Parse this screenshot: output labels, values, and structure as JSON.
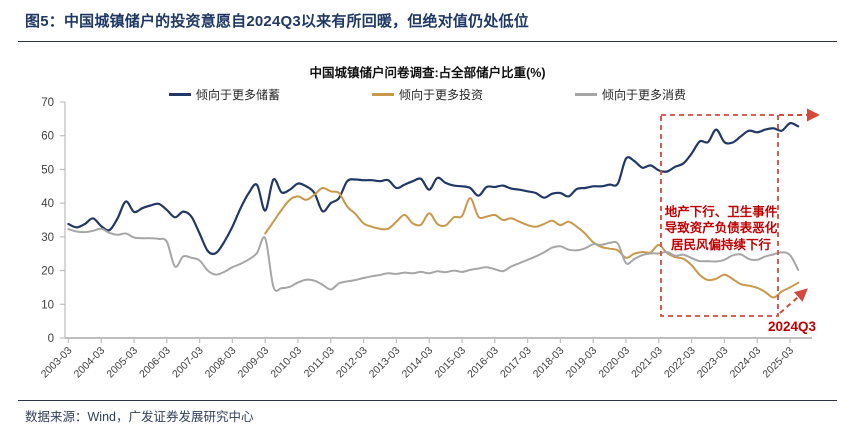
{
  "header": {
    "figure_title": "图5：中国城镇储户的投资意愿自2024Q3以来有所回暖，但绝对值仍处低位"
  },
  "footer": {
    "source": "数据来源：Wind，广发证券发展研究中心"
  },
  "chart_data": {
    "type": "line",
    "title": "中国城镇储户问卷调查:占全部储户比重(%)",
    "x_frequency": "quarterly",
    "x_range": [
      "2003-03",
      "2025-06"
    ],
    "x_labels": [
      "2003-03",
      "2004-03",
      "2005-03",
      "2006-03",
      "2007-03",
      "2008-03",
      "2009-03",
      "2010-03",
      "2011-03",
      "2012-03",
      "2013-03",
      "2014-03",
      "2015-03",
      "2016-03",
      "2017-03",
      "2018-03",
      "2019-03",
      "2020-03",
      "2021-03",
      "2022-03",
      "2023-03",
      "2024-03",
      "2025-03"
    ],
    "ylim": [
      0,
      70
    ],
    "y_ticks": [
      0,
      10,
      20,
      30,
      40,
      50,
      60,
      70
    ],
    "grid": false,
    "legend_position": "top",
    "axis_color": "#BFBFBF",
    "label_color": "#404040",
    "series": [
      {
        "name": "倾向于更多储蓄",
        "color": "#1F3864",
        "width": 2.2,
        "start": "2003-03",
        "start_index": 0,
        "values": [
          33.8,
          32.8,
          33.8,
          35.5,
          33.2,
          32.0,
          35.5,
          40.5,
          37.4,
          38.5,
          39.3,
          39.8,
          38.0,
          35.8,
          37.5,
          36.0,
          31.0,
          25.8,
          25.2,
          28.5,
          33.0,
          38.5,
          43.0,
          45.4,
          37.8,
          47.0,
          43.2,
          44.0,
          45.8,
          45.0,
          43.0,
          37.6,
          40.0,
          41.5,
          46.5,
          47.0,
          46.8,
          46.8,
          46.5,
          46.8,
          44.5,
          45.5,
          46.5,
          47.2,
          44.0,
          47.5,
          46.0,
          45.2,
          45.0,
          44.5,
          42.2,
          44.8,
          44.8,
          45.2,
          44.3,
          44.0,
          43.5,
          43.0,
          41.6,
          42.8,
          43.0,
          42.0,
          44.2,
          44.5,
          45.0,
          45.0,
          45.5,
          45.8,
          53.2,
          52.5,
          50.5,
          51.2,
          49.7,
          49.4,
          50.8,
          51.8,
          54.7,
          58.3,
          58.1,
          61.8,
          58.1,
          58.0,
          59.8,
          61.5,
          61.0,
          61.8,
          62.2,
          61.5,
          63.7,
          62.8
        ]
      },
      {
        "name": "倾向于更多投资",
        "color": "#C9984A",
        "width": 2.0,
        "start": "2009-03",
        "start_index": 24,
        "values": [
          31.0,
          34.5,
          38.0,
          41.0,
          42.0,
          41.0,
          42.5,
          44.5,
          43.5,
          43.0,
          39.0,
          36.8,
          34.0,
          33.0,
          32.4,
          32.4,
          34.5,
          36.5,
          34.0,
          33.6,
          37.0,
          33.8,
          33.4,
          35.8,
          36.2,
          41.5,
          36.0,
          36.0,
          36.5,
          35.0,
          35.5,
          34.5,
          33.5,
          33.0,
          33.8,
          34.8,
          33.5,
          34.5,
          33.0,
          31.0,
          28.4,
          27.0,
          26.5,
          26.0,
          23.8,
          25.0,
          25.5,
          25.4,
          27.6,
          25.2,
          24.0,
          23.5,
          21.6,
          18.7,
          17.2,
          17.6,
          18.8,
          17.5,
          16.0,
          15.5,
          14.9,
          13.6,
          12.0,
          13.8,
          15.0,
          16.4
        ]
      },
      {
        "name": "倾向于更多消费",
        "color": "#A6A6A6",
        "width": 2.0,
        "start": "2003-03",
        "start_index": 0,
        "values": [
          32.3,
          31.6,
          31.4,
          31.8,
          32.4,
          31.2,
          30.6,
          31.0,
          29.8,
          29.6,
          29.6,
          29.4,
          28.6,
          21.2,
          24.2,
          23.8,
          23.0,
          20.0,
          18.8,
          19.6,
          21.0,
          22.0,
          23.3,
          25.2,
          29.6,
          15.2,
          14.8,
          15.2,
          16.5,
          17.3,
          17.0,
          15.8,
          14.4,
          16.2,
          16.8,
          17.2,
          17.8,
          18.3,
          18.7,
          19.2,
          19.0,
          19.4,
          19.2,
          19.6,
          19.2,
          19.8,
          19.5,
          20.0,
          19.6,
          20.2,
          20.6,
          21.0,
          20.4,
          19.8,
          21.2,
          22.2,
          23.2,
          24.2,
          25.4,
          26.8,
          27.2,
          26.2,
          26.0,
          26.6,
          27.8,
          27.6,
          28.2,
          28.0,
          22.2,
          23.4,
          24.6,
          25.1,
          25.1,
          25.5,
          24.4,
          24.7,
          23.7,
          22.8,
          22.8,
          22.7,
          23.2,
          24.5,
          24.8,
          23.4,
          23.2,
          24.2,
          24.8,
          25.4,
          24.6,
          20.2
        ]
      }
    ],
    "annotation": {
      "box_region": "2021-03 to 2024-12",
      "text_lines": [
        "地产下行、卫生事件",
        "导致资产负债表恶化",
        "居民风偏持续下行"
      ],
      "label": "2024Q3",
      "text_color": "#C00000",
      "dash_color": "#D5493C"
    }
  }
}
